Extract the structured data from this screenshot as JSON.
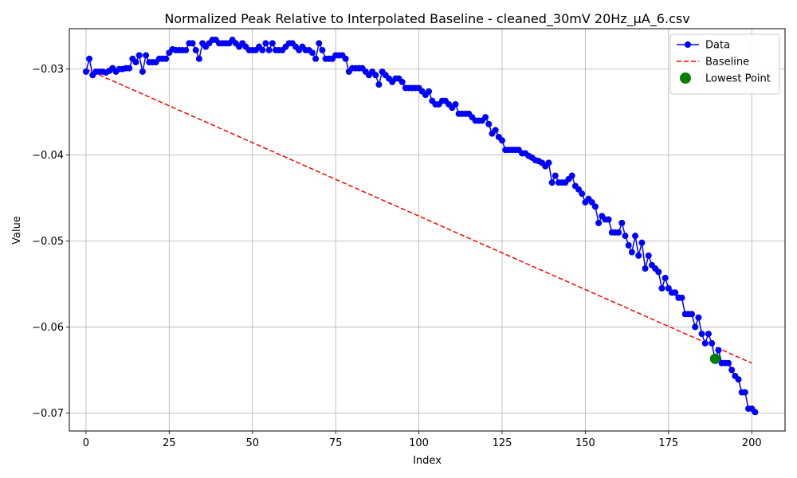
{
  "chart_data": {
    "type": "line",
    "title": "Normalized Peak Relative to Interpolated Baseline - cleaned_30mV 20Hz_µA_6.csv",
    "xlabel": "Index",
    "ylabel": "Value",
    "xlim": [
      -5,
      210
    ],
    "ylim": [
      -0.0721,
      -0.0253
    ],
    "xticks": [
      0,
      25,
      50,
      75,
      100,
      125,
      150,
      175,
      200
    ],
    "xtick_labels": [
      "0",
      "25",
      "50",
      "75",
      "100",
      "125",
      "150",
      "175",
      "200"
    ],
    "yticks": [
      -0.03,
      -0.04,
      -0.05,
      -0.06,
      -0.07
    ],
    "ytick_labels": [
      "−0.03",
      "−0.04",
      "−0.05",
      "−0.06",
      "−0.07"
    ],
    "grid": true,
    "legend_position": "top-right",
    "series": [
      {
        "name": "Data",
        "kind": "line-marker",
        "color": "#0000ff",
        "x": [
          0,
          1,
          2,
          3,
          4,
          5,
          6,
          7,
          8,
          9,
          10,
          11,
          12,
          13,
          14,
          15,
          16,
          17,
          18,
          19,
          20,
          21,
          22,
          23,
          24,
          25,
          26,
          27,
          28,
          29,
          30,
          31,
          32,
          33,
          34,
          35,
          36,
          37,
          38,
          39,
          40,
          41,
          42,
          43,
          44,
          45,
          46,
          47,
          48,
          49,
          50,
          51,
          52,
          53,
          54,
          55,
          56,
          57,
          58,
          59,
          60,
          61,
          62,
          63,
          64,
          65,
          66,
          67,
          68,
          69,
          70,
          71,
          72,
          73,
          74,
          75,
          76,
          77,
          78,
          79,
          80,
          81,
          82,
          83,
          84,
          85,
          86,
          87,
          88,
          89,
          90,
          91,
          92,
          93,
          94,
          95,
          96,
          97,
          98,
          99,
          100,
          101,
          102,
          103,
          104,
          105,
          106,
          107,
          108,
          109,
          110,
          111,
          112,
          113,
          114,
          115,
          116,
          117,
          118,
          119,
          120,
          121,
          122,
          123,
          124,
          125,
          126,
          127,
          128,
          129,
          130,
          131,
          132,
          133,
          134,
          135,
          136,
          137,
          138,
          139,
          140,
          141,
          142,
          143,
          144,
          145,
          146,
          147,
          148,
          149,
          150,
          151,
          152,
          153,
          154,
          155,
          156,
          157,
          158,
          159,
          160,
          161,
          162,
          163,
          164,
          165,
          166,
          167,
          168,
          169,
          170,
          171,
          172,
          173,
          174,
          175,
          176,
          177,
          178,
          179,
          180,
          181,
          182,
          183,
          184,
          185,
          186,
          187,
          188,
          189,
          190,
          191,
          192,
          193,
          194,
          195,
          196,
          197,
          198,
          199,
          200,
          201
        ],
        "y": [
          -0.0303,
          -0.0288,
          -0.0307,
          -0.0303,
          -0.0303,
          -0.0303,
          -0.0304,
          -0.0302,
          -0.0299,
          -0.0303,
          -0.03,
          -0.03,
          -0.0299,
          -0.0299,
          -0.0288,
          -0.0292,
          -0.0284,
          -0.0303,
          -0.0284,
          -0.0292,
          -0.0292,
          -0.0292,
          -0.0288,
          -0.0288,
          -0.0288,
          -0.0281,
          -0.0277,
          -0.0278,
          -0.0278,
          -0.0278,
          -0.0278,
          -0.027,
          -0.027,
          -0.0278,
          -0.0288,
          -0.027,
          -0.0274,
          -0.027,
          -0.0266,
          -0.0266,
          -0.027,
          -0.027,
          -0.027,
          -0.027,
          -0.0266,
          -0.027,
          -0.0274,
          -0.027,
          -0.0274,
          -0.0278,
          -0.0278,
          -0.0278,
          -0.0274,
          -0.0278,
          -0.027,
          -0.0278,
          -0.027,
          -0.0278,
          -0.0278,
          -0.0278,
          -0.0274,
          -0.027,
          -0.027,
          -0.0274,
          -0.0278,
          -0.0274,
          -0.0278,
          -0.0278,
          -0.0281,
          -0.0288,
          -0.027,
          -0.0278,
          -0.0288,
          -0.0288,
          -0.0288,
          -0.0284,
          -0.0284,
          -0.0284,
          -0.0288,
          -0.0303,
          -0.0299,
          -0.0299,
          -0.0299,
          -0.0299,
          -0.0303,
          -0.0307,
          -0.0303,
          -0.0307,
          -0.0318,
          -0.0303,
          -0.0307,
          -0.0311,
          -0.0315,
          -0.0311,
          -0.0311,
          -0.0315,
          -0.0322,
          -0.0322,
          -0.0322,
          -0.0322,
          -0.0322,
          -0.0326,
          -0.033,
          -0.0326,
          -0.0337,
          -0.0341,
          -0.0341,
          -0.0337,
          -0.0337,
          -0.0341,
          -0.0345,
          -0.0341,
          -0.0352,
          -0.0352,
          -0.0352,
          -0.0352,
          -0.0356,
          -0.036,
          -0.036,
          -0.036,
          -0.0356,
          -0.0364,
          -0.0375,
          -0.0371,
          -0.0379,
          -0.0383,
          -0.0394,
          -0.0394,
          -0.0394,
          -0.0394,
          -0.0394,
          -0.0398,
          -0.0398,
          -0.0401,
          -0.0403,
          -0.0406,
          -0.0407,
          -0.0409,
          -0.0413,
          -0.0409,
          -0.0432,
          -0.0424,
          -0.0432,
          -0.0432,
          -0.0432,
          -0.0428,
          -0.0424,
          -0.0436,
          -0.044,
          -0.0445,
          -0.0455,
          -0.0451,
          -0.0455,
          -0.046,
          -0.0479,
          -0.0471,
          -0.0475,
          -0.0475,
          -0.049,
          -0.049,
          -0.049,
          -0.0479,
          -0.0494,
          -0.0505,
          -0.0513,
          -0.0494,
          -0.0517,
          -0.0502,
          -0.0532,
          -0.0517,
          -0.0528,
          -0.0532,
          -0.0536,
          -0.0555,
          -0.0543,
          -0.0555,
          -0.056,
          -0.056,
          -0.0566,
          -0.0566,
          -0.0585,
          -0.0585,
          -0.0585,
          -0.06,
          -0.0589,
          -0.0608,
          -0.0619,
          -0.0608,
          -0.0619,
          -0.0638,
          -0.0627,
          -0.0642,
          -0.0642,
          -0.0642,
          -0.065,
          -0.0657,
          -0.0661,
          -0.0676,
          -0.0676,
          -0.0695,
          -0.0695,
          -0.0699
        ]
      },
      {
        "name": "Baseline",
        "kind": "dashed-line",
        "color": "#ff0000",
        "x": [
          0,
          200
        ],
        "y": [
          -0.03,
          -0.0642
        ]
      },
      {
        "name": "Lowest Point",
        "kind": "point",
        "color": "#008000",
        "x": [
          189
        ],
        "y": [
          -0.0637
        ]
      }
    ]
  }
}
